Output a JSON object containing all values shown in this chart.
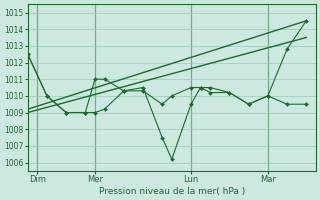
{
  "bg_color": "#cce8df",
  "grid_color": "#99ccbb",
  "line_color": "#1a6b2a",
  "ylabel_text": "Pression niveau de la mer( hPa )",
  "ylim": [
    1005.5,
    1015.5
  ],
  "yticks": [
    1006,
    1007,
    1008,
    1009,
    1010,
    1011,
    1012,
    1013,
    1014,
    1015
  ],
  "xtick_labels": [
    "Dim",
    "Mer",
    "Lun",
    "Mar"
  ],
  "xtick_positions": [
    2,
    14,
    34,
    50
  ],
  "vline_positions": [
    2,
    14,
    34,
    50
  ],
  "xlim": [
    0,
    60
  ],
  "series_volatile": {
    "x": [
      0,
      4,
      8,
      12,
      14,
      16,
      20,
      24,
      28,
      30,
      34,
      36,
      38,
      42,
      46,
      50,
      54,
      58
    ],
    "y": [
      1012.5,
      1010.0,
      1009.0,
      1009.0,
      1011.0,
      1011.0,
      1010.3,
      1010.5,
      1007.5,
      1006.2,
      1009.5,
      1010.5,
      1010.5,
      1010.2,
      1009.5,
      1010.0,
      1009.5,
      1009.5
    ]
  },
  "series_moderate": {
    "x": [
      0,
      4,
      8,
      12,
      14,
      16,
      20,
      24,
      28,
      30,
      34,
      36,
      38,
      42,
      46,
      50,
      54,
      58
    ],
    "y": [
      1012.5,
      1010.0,
      1009.0,
      1009.0,
      1009.0,
      1009.2,
      1010.3,
      1010.3,
      1009.5,
      1010.0,
      1010.5,
      1010.5,
      1010.2,
      1010.2,
      1009.5,
      1010.0,
      1012.8,
      1014.5
    ]
  },
  "series_trend1": {
    "x": [
      0,
      58
    ],
    "y": [
      1009.2,
      1014.5
    ]
  },
  "series_trend2": {
    "x": [
      0,
      58
    ],
    "y": [
      1009.0,
      1013.5
    ]
  }
}
